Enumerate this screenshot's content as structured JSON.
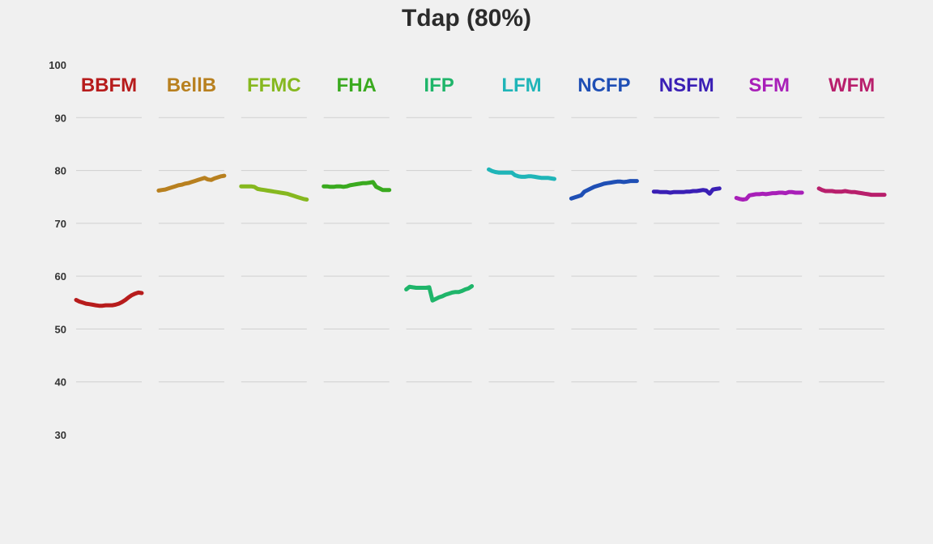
{
  "chart_data": {
    "type": "line",
    "title": "Tdap (80%)",
    "xlabel": "",
    "ylabel": "",
    "ylim": [
      30,
      100
    ],
    "yticks": [
      100,
      90,
      80,
      70,
      60,
      50,
      40,
      30
    ],
    "grid": true,
    "layout": "small-multiples",
    "x": [
      0,
      0.05,
      0.1,
      0.15,
      0.2,
      0.25,
      0.3,
      0.35,
      0.4,
      0.45,
      0.5,
      0.55,
      0.6,
      0.65,
      0.7,
      0.75,
      0.8,
      0.85,
      0.9,
      0.95,
      1.0
    ],
    "series": [
      {
        "name": "BBFM",
        "color": "#b71c1c",
        "values": [
          55.5,
          55.2,
          55.0,
          54.8,
          54.7,
          54.6,
          54.5,
          54.4,
          54.4,
          54.5,
          54.5,
          54.5,
          54.6,
          54.8,
          55.1,
          55.5,
          56.0,
          56.4,
          56.7,
          56.9,
          56.8
        ]
      },
      {
        "name": "BellB",
        "color": "#b8801f",
        "values": [
          76.2,
          76.3,
          76.4,
          76.6,
          76.8,
          77.0,
          77.2,
          77.3,
          77.5,
          77.6,
          77.8,
          78.0,
          78.2,
          78.4,
          78.6,
          78.3,
          78.2,
          78.5,
          78.7,
          78.9,
          79.0
        ]
      },
      {
        "name": "FFMC",
        "color": "#86b81f",
        "values": [
          77.0,
          77.0,
          77.0,
          77.0,
          76.9,
          76.5,
          76.4,
          76.3,
          76.2,
          76.1,
          76.0,
          75.9,
          75.8,
          75.7,
          75.6,
          75.4,
          75.2,
          75.0,
          74.8,
          74.6,
          74.5
        ]
      },
      {
        "name": "FHA",
        "color": "#3aaa1f",
        "values": [
          77.0,
          77.0,
          76.9,
          76.9,
          77.0,
          77.0,
          76.9,
          77.0,
          77.2,
          77.3,
          77.4,
          77.5,
          77.6,
          77.6,
          77.7,
          77.8,
          76.9,
          76.6,
          76.3,
          76.3,
          76.3
        ]
      },
      {
        "name": "IFP",
        "color": "#1fb56a",
        "values": [
          57.5,
          58.0,
          57.9,
          57.8,
          57.8,
          57.8,
          57.8,
          57.9,
          55.4,
          55.7,
          56.0,
          56.2,
          56.5,
          56.7,
          56.9,
          57.0,
          57.0,
          57.2,
          57.5,
          57.7,
          58.1
        ]
      },
      {
        "name": "LFM",
        "color": "#1fb5b8",
        "values": [
          80.2,
          79.9,
          79.7,
          79.6,
          79.6,
          79.6,
          79.6,
          79.6,
          79.1,
          78.9,
          78.8,
          78.8,
          78.9,
          78.9,
          78.8,
          78.7,
          78.6,
          78.6,
          78.6,
          78.5,
          78.4
        ]
      },
      {
        "name": "NCFP",
        "color": "#1f4fb5",
        "values": [
          74.7,
          74.9,
          75.1,
          75.3,
          76.0,
          76.3,
          76.6,
          76.9,
          77.1,
          77.3,
          77.5,
          77.6,
          77.7,
          77.8,
          77.9,
          77.9,
          77.8,
          77.9,
          78.0,
          78.0,
          78.0
        ]
      },
      {
        "name": "NSFM",
        "color": "#3a1fb5",
        "values": [
          76.0,
          76.0,
          75.9,
          75.9,
          75.9,
          75.8,
          75.9,
          75.9,
          75.9,
          75.9,
          76.0,
          76.0,
          76.1,
          76.1,
          76.2,
          76.3,
          76.2,
          75.6,
          76.4,
          76.5,
          76.6
        ]
      },
      {
        "name": "SFM",
        "color": "#a81fb8",
        "values": [
          74.8,
          74.6,
          74.5,
          74.6,
          75.3,
          75.4,
          75.5,
          75.5,
          75.6,
          75.5,
          75.6,
          75.7,
          75.7,
          75.8,
          75.8,
          75.7,
          75.9,
          75.9,
          75.8,
          75.8,
          75.8
        ]
      },
      {
        "name": "WFM",
        "color": "#b81f6c",
        "values": [
          76.6,
          76.3,
          76.1,
          76.1,
          76.1,
          76.0,
          76.0,
          76.0,
          76.1,
          76.0,
          75.9,
          75.9,
          75.8,
          75.7,
          75.6,
          75.5,
          75.4,
          75.4,
          75.4,
          75.4,
          75.4
        ]
      }
    ]
  }
}
